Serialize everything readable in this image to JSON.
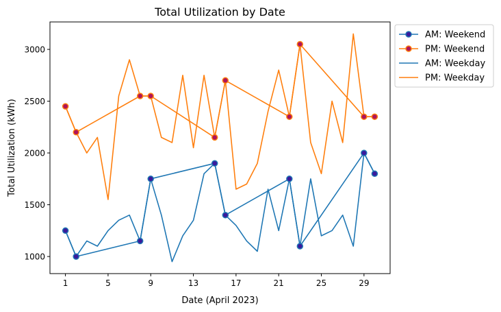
{
  "chart_data": {
    "type": "line",
    "title": "Total Utilization by Date",
    "xlabel": "Date (April 2023)",
    "ylabel": "Total Utilization (kWh)",
    "x": [
      1,
      2,
      3,
      4,
      5,
      6,
      7,
      8,
      9,
      10,
      11,
      12,
      13,
      14,
      15,
      16,
      17,
      18,
      19,
      20,
      21,
      22,
      23,
      24,
      25,
      26,
      27,
      28,
      29,
      30
    ],
    "xlim": [
      -0.45,
      31.45
    ],
    "ylim": [
      835,
      3265
    ],
    "xticks": [
      1,
      5,
      9,
      13,
      17,
      21,
      25,
      29
    ],
    "yticks": [
      1000,
      1500,
      2000,
      2500,
      3000
    ],
    "xtick_labels": [
      "1",
      "5",
      "9",
      "13",
      "17",
      "21",
      "25",
      "29"
    ],
    "ytick_labels": [
      "1000",
      "1500",
      "2000",
      "2500",
      "3000"
    ],
    "legend_position": "upper-right-outside",
    "grid": false,
    "series": [
      {
        "name": "AM: Weekday",
        "color": "#1f77b4",
        "values": [
          1250,
          1000,
          1150,
          1100,
          1250,
          1350,
          1400,
          1150,
          1750,
          1400,
          950,
          1200,
          1350,
          1800,
          1900,
          1400,
          1300,
          1150,
          1050,
          1650,
          1250,
          1750,
          1100,
          1750,
          1200,
          1250,
          1400,
          1100,
          2000,
          1800
        ]
      },
      {
        "name": "PM: Weekday",
        "color": "#ff7f0e",
        "values": [
          2450,
          2200,
          2000,
          2150,
          1550,
          2550,
          2900,
          2550,
          2550,
          2150,
          2100,
          2750,
          2050,
          2750,
          2150,
          2700,
          1650,
          1700,
          1900,
          2400,
          2800,
          2350,
          3050,
          2100,
          1800,
          2500,
          2100,
          3150,
          2350,
          2350
        ]
      },
      {
        "name": "AM: Weekend",
        "color": "#1f77b4",
        "marker_face": "#3a1a9c",
        "x": [
          1,
          2,
          8,
          9,
          15,
          16,
          22,
          23,
          29,
          30
        ],
        "values": [
          1250,
          1000,
          1150,
          1750,
          1900,
          1400,
          1750,
          1100,
          2000,
          1800
        ]
      },
      {
        "name": "PM: Weekend",
        "color": "#ff7f0e",
        "marker_face": "#b0145a",
        "x": [
          1,
          2,
          8,
          9,
          15,
          16,
          22,
          23,
          29,
          30
        ],
        "values": [
          2450,
          2200,
          2550,
          2550,
          2150,
          2700,
          2350,
          3050,
          2350,
          2350
        ]
      }
    ],
    "legend": [
      {
        "label": "AM: Weekend",
        "color": "#1f77b4",
        "marker": true,
        "marker_face": "#3a1a9c"
      },
      {
        "label": "PM: Weekend",
        "color": "#ff7f0e",
        "marker": true,
        "marker_face": "#b0145a"
      },
      {
        "label": "AM: Weekday",
        "color": "#1f77b4",
        "marker": false
      },
      {
        "label": "PM: Weekday",
        "color": "#ff7f0e",
        "marker": false
      }
    ]
  }
}
